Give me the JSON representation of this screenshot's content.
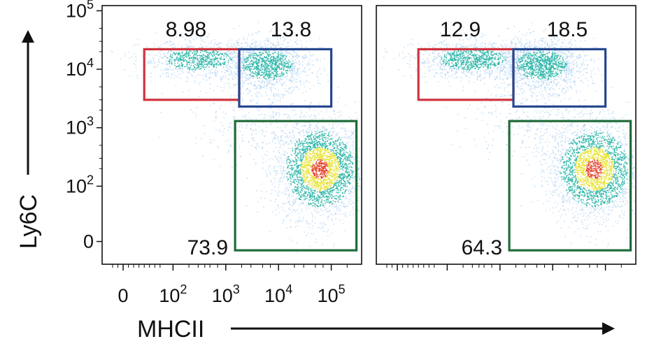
{
  "chart_data": {
    "type": "scatter",
    "xlabel": "MHCII",
    "ylabel": "Ly6C",
    "x_scale": "biexponential",
    "y_scale": "biexponential",
    "xlim": [
      -30,
      300000
    ],
    "ylim": [
      -30,
      100000
    ],
    "x_ticks": [
      {
        "label": "0",
        "value": 0
      },
      {
        "label": "10",
        "sup": "2",
        "value": 100
      },
      {
        "label": "10",
        "sup": "3",
        "value": 1000
      },
      {
        "label": "10",
        "sup": "4",
        "value": 10000
      },
      {
        "label": "10",
        "sup": "5",
        "value": 100000
      }
    ],
    "y_ticks": [
      {
        "label": "0",
        "value": 0
      },
      {
        "label": "10",
        "sup": "2",
        "value": 100
      },
      {
        "label": "10",
        "sup": "3",
        "value": 1000
      },
      {
        "label": "10",
        "sup": "4",
        "value": 10000
      },
      {
        "label": "10",
        "sup": "5",
        "value": 100000
      }
    ],
    "panels": [
      {
        "gates": [
          {
            "color": "#d0333f",
            "value": "8.98",
            "x_range": [
              40,
              1800
            ],
            "y_range": [
              3000,
              22000
            ]
          },
          {
            "color": "#26478f",
            "value": "13.8",
            "x_range": [
              1800,
              100000
            ],
            "y_range": [
              2300,
              22000
            ]
          },
          {
            "color": "#1f6b3a",
            "value": "73.9",
            "x_range": [
              1500,
              300000
            ],
            "y_range": [
              -15,
              1300
            ]
          }
        ]
      },
      {
        "gates": [
          {
            "color": "#d0333f",
            "value": "12.9",
            "x_range": [
              40,
              1800
            ],
            "y_range": [
              3000,
              22000
            ]
          },
          {
            "color": "#26478f",
            "value": "18.5",
            "x_range": [
              1800,
              100000
            ],
            "y_range": [
              2300,
              22000
            ]
          },
          {
            "color": "#1f6b3a",
            "value": "64.3",
            "x_range": [
              1500,
              300000
            ],
            "y_range": [
              -15,
              1300
            ]
          }
        ]
      }
    ]
  },
  "colors": {
    "density_low": "#9ec9ee",
    "density_mid": "#2bb6a7",
    "density_high": "#e8e336",
    "density_peak": "#e8412a"
  }
}
